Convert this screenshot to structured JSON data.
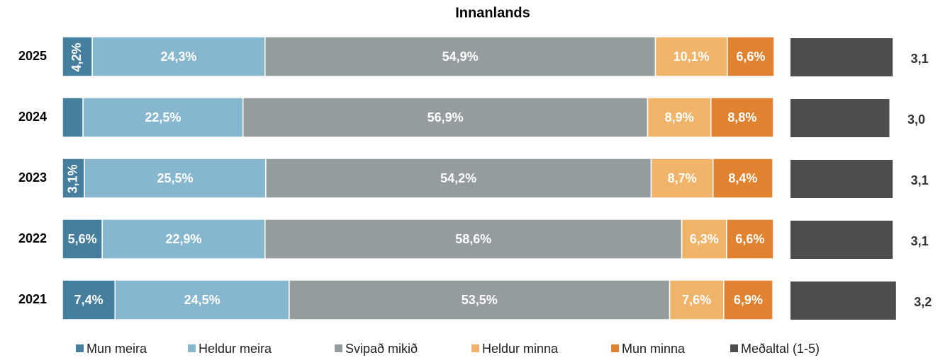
{
  "chart_data": {
    "type": "stacked_bar",
    "title": "Innanlands",
    "categories": [
      "2025",
      "2024",
      "2023",
      "2022",
      "2021"
    ],
    "xlim": [
      0,
      100
    ],
    "series": [
      {
        "name": "Mun meira",
        "color": "#467f9e",
        "values": [
          4.2,
          2.9,
          3.1,
          5.6,
          7.4
        ],
        "value_labels": [
          "4,2%",
          null,
          "3,1%",
          "5,6%",
          "7,4%"
        ]
      },
      {
        "name": "Heldur meira",
        "color": "#87b7cf",
        "values": [
          24.3,
          22.5,
          25.5,
          22.9,
          24.5
        ],
        "value_labels": [
          "24,3%",
          "22,5%",
          "25,5%",
          "22,9%",
          "24,5%"
        ]
      },
      {
        "name": "Svipað mikið",
        "color": "#959c9e",
        "values": [
          54.9,
          56.9,
          54.2,
          58.6,
          53.5
        ],
        "value_labels": [
          "54,9%",
          "56,9%",
          "54,2%",
          "58,6%",
          "53,5%"
        ]
      },
      {
        "name": "Heldur minna",
        "color": "#f0b36a",
        "values": [
          10.1,
          8.9,
          8.7,
          6.3,
          7.6
        ],
        "value_labels": [
          "10,1%",
          "8,9%",
          "8,7%",
          "6,3%",
          "7,6%"
        ]
      },
      {
        "name": "Mun minna",
        "color": "#e0822f",
        "values": [
          6.6,
          8.8,
          8.4,
          6.6,
          6.9
        ],
        "value_labels": [
          "6,6%",
          "8,8%",
          "8,4%",
          "6,6%",
          "6,9%"
        ]
      }
    ],
    "average": {
      "name": "Meðaltal (1-5)",
      "color": "#4d4d4d",
      "values": [
        3.1,
        3.0,
        3.1,
        3.1,
        3.2
      ],
      "value_labels": [
        "3,1",
        "3,0",
        "3,1",
        "3,1",
        "3,2"
      ],
      "xlim": [
        0,
        4
      ]
    }
  }
}
